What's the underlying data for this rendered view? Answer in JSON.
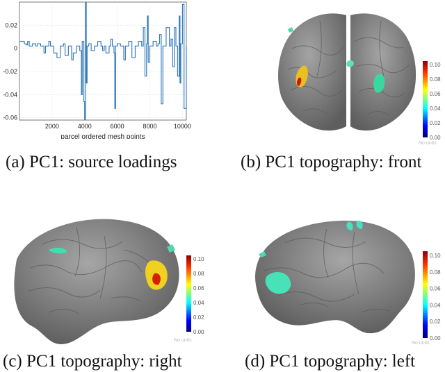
{
  "chart_data": [
    {
      "type": "line",
      "title": "",
      "xlabel": "parcel ordered mesh points",
      "ylabel": "",
      "xlim": [
        0,
        10240
      ],
      "ylim": [
        -0.062,
        0.04
      ],
      "xticks": [
        2000,
        4000,
        6000,
        8000,
        10000
      ],
      "yticks": [
        0.02,
        0,
        -0.02,
        -0.04,
        -0.06
      ],
      "ytick_labels": [
        "0.02",
        "0",
        "-0.02",
        "-0.04",
        "-0.06"
      ],
      "grid": true,
      "line_color": "#2b74b8",
      "x": [
        0,
        300,
        400,
        500,
        600,
        800,
        1000,
        1100,
        1300,
        1500,
        1600,
        1800,
        1900,
        2100,
        2300,
        2500,
        2700,
        2800,
        3000,
        3200,
        3300,
        3500,
        3700,
        3800,
        3850,
        3950,
        4000,
        4050,
        4100,
        4150,
        4250,
        4400,
        4600,
        4800,
        5000,
        5100,
        5200,
        5300,
        5500,
        5600,
        5700,
        5800,
        5850,
        5900,
        6000,
        6200,
        6400,
        6500,
        6700,
        6900,
        7100,
        7300,
        7500,
        7600,
        7700,
        7800,
        7850,
        7900,
        8000,
        8200,
        8400,
        8500,
        8600,
        8700,
        8800,
        9000,
        9200,
        9300,
        9400,
        9500,
        9600,
        9700,
        9800,
        9850,
        9900,
        10000,
        10100,
        10240
      ],
      "y": [
        0.006,
        0.004,
        0.003,
        0.006,
        0.002,
        0.004,
        0.002,
        0.004,
        0.002,
        -0.004,
        0.002,
        0.006,
        0.002,
        -0.004,
        -0.008,
        0.002,
        0.004,
        -0.006,
        0.002,
        -0.01,
        -0.004,
        0.002,
        -0.002,
        -0.04,
        0.006,
        -0.046,
        -0.062,
        0.04,
        -0.03,
        0.002,
        0.004,
        -0.002,
        0.002,
        0.006,
        0.002,
        -0.002,
        0.002,
        -0.004,
        0.002,
        0.008,
        0.002,
        -0.004,
        -0.052,
        0.002,
        0.004,
        0.002,
        -0.01,
        0.002,
        0.006,
        -0.008,
        0.002,
        0.006,
        0.002,
        0.018,
        -0.024,
        0.004,
        0.028,
        -0.012,
        0.002,
        0.006,
        0.002,
        0.004,
        0.012,
        -0.048,
        0.002,
        0.018,
        0.002,
        0.008,
        -0.016,
        0.018,
        0.002,
        -0.024,
        0.028,
        -0.03,
        0.004,
        0.038,
        -0.052,
        0.002
      ]
    },
    {
      "type": "heatmap",
      "cb_ticks": [
        "0.10",
        "0.08",
        "0.06",
        "0.04",
        "0.02",
        "0.00"
      ],
      "cb_range": [
        0,
        0.105
      ],
      "unit_text": "No units"
    }
  ],
  "captions": {
    "a": "(a) PC1: source loadings",
    "b": "(b) PC1 topography: front",
    "c": "(c) PC1 topography: right",
    "d": "(d) PC1 topography: left"
  },
  "colors": {
    "cortex": "#8f8f8f",
    "line": "#2b74b8"
  }
}
